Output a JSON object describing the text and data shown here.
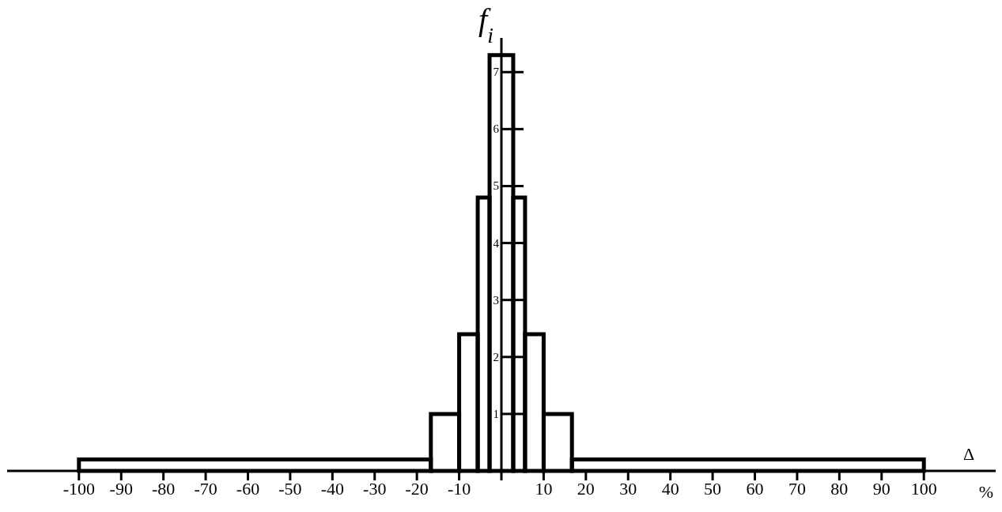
{
  "chart_data": {
    "type": "histogram",
    "xlabel": "Δ",
    "ylabel": "f$_{i}$",
    "annotations": [
      "%"
    ],
    "bins": [
      -100,
      -16.7,
      -10,
      -5.6,
      -2.8,
      2.8,
      5.6,
      10,
      16.7,
      100
    ],
    "values": [
      0.2,
      1,
      2.4,
      4.8,
      7.3,
      4.8,
      2.4,
      1,
      0.2
    ],
    "color": "#000000",
    "xlim": [
      -117,
      117
    ],
    "ylim": [
      0,
      7.6
    ],
    "xticks": [
      -100,
      -90,
      -80,
      -70,
      -60,
      -50,
      -40,
      -30,
      -20,
      -10,
      {
        "value": 0,
        "label": null
      },
      10,
      20,
      30,
      40,
      50,
      60,
      70,
      80,
      90,
      100
    ],
    "yticks": [
      1,
      2,
      3,
      4,
      5,
      6,
      7
    ]
  }
}
